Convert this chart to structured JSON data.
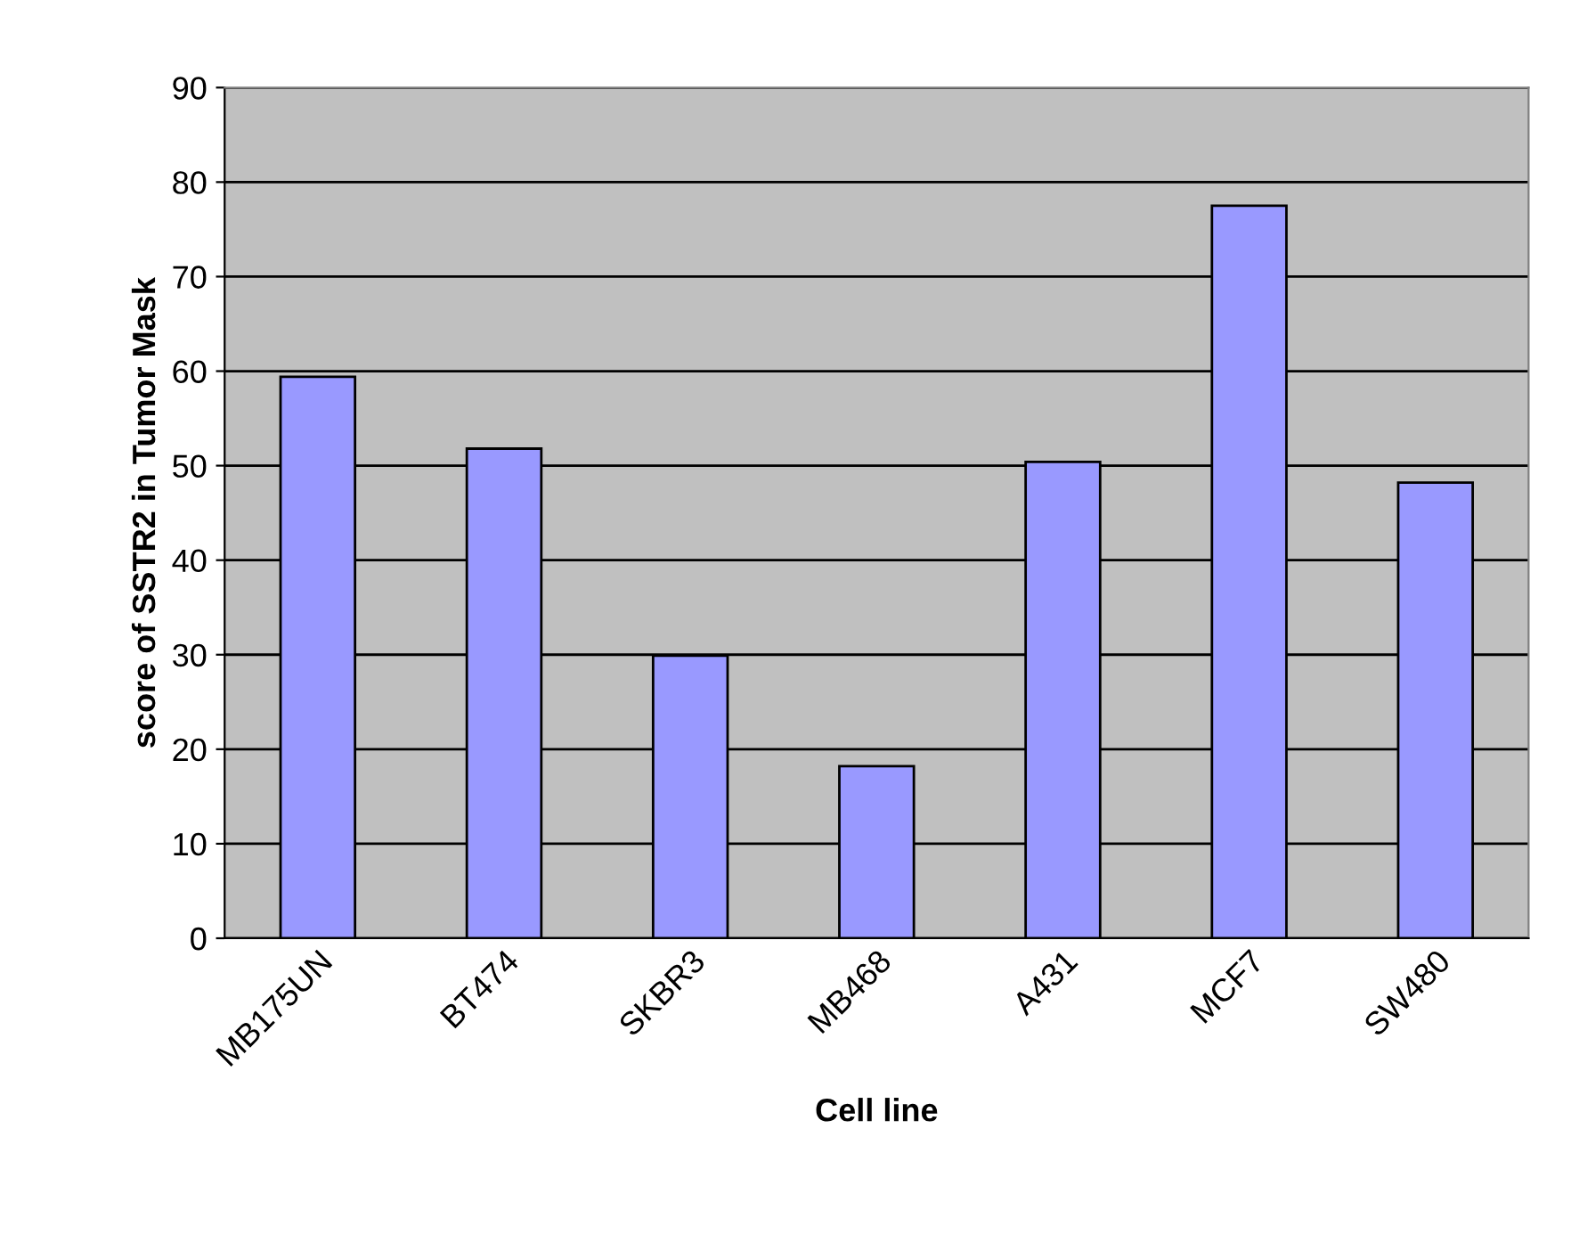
{
  "chart_data": {
    "type": "bar",
    "xlabel": "Cell line",
    "ylabel": "score of SSTR2 in Tumor Mask",
    "categories": [
      "MB175UN",
      "BT474",
      "SKBR3",
      "MB468",
      "A431",
      "MCF7",
      "SW480"
    ],
    "values": [
      59.4,
      51.8,
      29.9,
      18.2,
      50.4,
      77.5,
      48.2
    ],
    "color": "#9999ff",
    "ylim": [
      0,
      90
    ],
    "yticks": [
      0,
      10,
      20,
      30,
      40,
      50,
      60,
      70,
      80,
      90
    ],
    "grid": "y",
    "legend": false
  }
}
